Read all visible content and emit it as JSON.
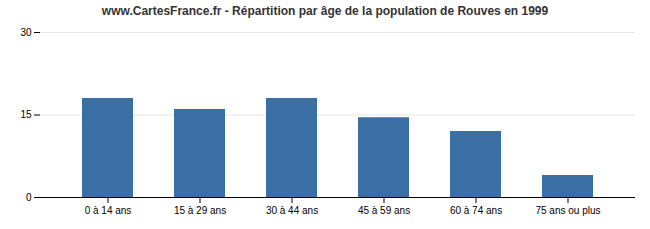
{
  "chart_data": {
    "type": "bar",
    "title": "www.CartesFrance.fr - Répartition par âge de la population de Rouves en 1999",
    "categories": [
      "0 à 14 ans",
      "15 à 29 ans",
      "30 à 44 ans",
      "45 à 59 ans",
      "60 à 74 ans",
      "75 ans ou plus"
    ],
    "values": [
      18,
      16,
      18,
      14.5,
      12,
      4
    ],
    "color": "#3a6ea5",
    "ylim": [
      0,
      30
    ],
    "yticks": [
      0,
      15,
      30
    ],
    "grid": true
  }
}
